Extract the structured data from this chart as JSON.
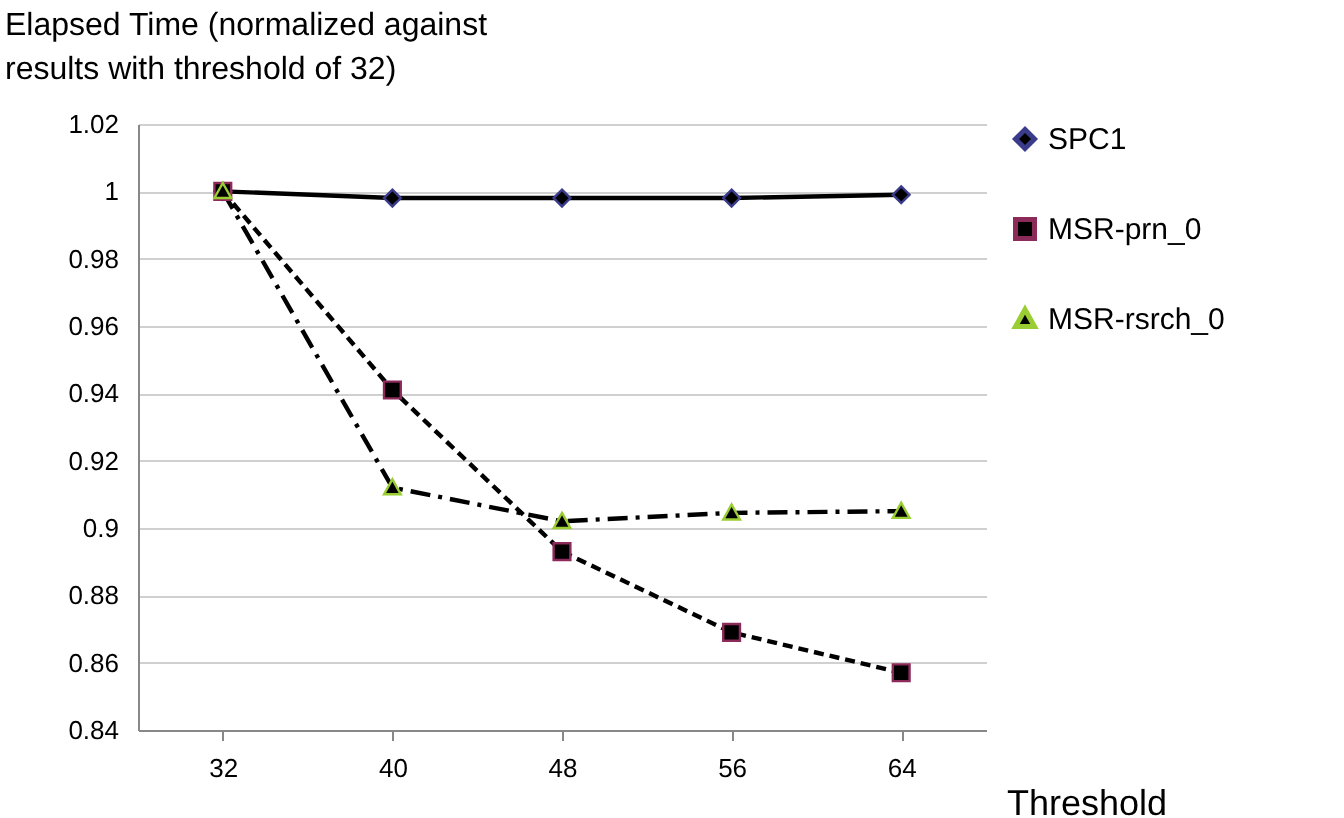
{
  "chart_data": {
    "type": "line",
    "ylabel": "Elapsed Time (normalized against results with threshold of 32)",
    "xlabel": "Threshold",
    "categories": [
      "32",
      "40",
      "48",
      "56",
      "64"
    ],
    "series": [
      {
        "name": "SPC1",
        "color": "#3b3b8c",
        "marker": "diamond",
        "line_style": "solid",
        "values": [
          1.0,
          0.998,
          0.998,
          0.998,
          0.999
        ]
      },
      {
        "name": "MSR-prn_0",
        "color": "#8c2a5a",
        "marker": "square",
        "line_style": "dashed",
        "values": [
          1.0,
          0.941,
          0.893,
          0.869,
          0.857
        ]
      },
      {
        "name": "MSR-rsrch_0",
        "color": "#9acd32",
        "marker": "triangle",
        "line_style": "dashdot",
        "values": [
          1.0,
          0.912,
          0.902,
          0.9045,
          0.905
        ]
      }
    ],
    "ylim": [
      0.84,
      1.02
    ],
    "yticks": [
      0.84,
      0.86,
      0.88,
      0.9,
      0.92,
      0.94,
      0.96,
      0.98,
      1,
      1.02
    ],
    "grid": "y",
    "legend": "right"
  }
}
